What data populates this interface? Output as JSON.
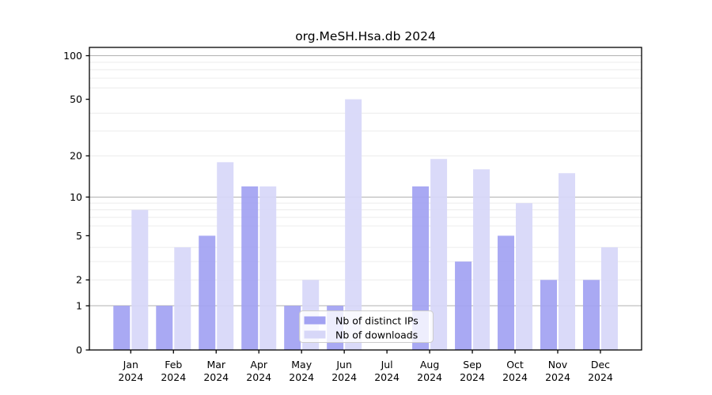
{
  "chart_data": {
    "type": "bar",
    "title": "org.MeSH.Hsa.db 2024",
    "categories": [
      "Jan 2024",
      "Feb 2024",
      "Mar 2024",
      "Apr 2024",
      "May 2024",
      "Jun 2024",
      "Jul 2024",
      "Aug 2024",
      "Sep 2024",
      "Oct 2024",
      "Nov 2024",
      "Dec 2024"
    ],
    "x_tick_months": [
      "Jan",
      "Feb",
      "Mar",
      "Apr",
      "May",
      "Jun",
      "Jul",
      "Aug",
      "Sep",
      "Oct",
      "Nov",
      "Dec"
    ],
    "x_tick_year": "2024",
    "series": [
      {
        "name": "Nb of distinct IPs",
        "color": "#a2a2f2",
        "values": [
          1,
          1,
          5,
          12,
          1,
          1,
          0,
          12,
          3,
          5,
          2,
          2
        ]
      },
      {
        "name": "Nb of downloads",
        "color": "#d7d7f8",
        "values": [
          8,
          4,
          18,
          12,
          2,
          50,
          0,
          19,
          16,
          9,
          15,
          4
        ]
      }
    ],
    "xlabel": "",
    "ylabel": "",
    "y_scale": "log1p",
    "ylim": [
      0,
      114
    ],
    "y_tick_values": [
      0,
      1,
      2,
      5,
      10,
      20,
      50,
      100
    ],
    "major_gridlines": [
      1,
      10,
      100
    ],
    "minor_gridlines": [
      2,
      3,
      4,
      6,
      7,
      8,
      9,
      20,
      30,
      40,
      60,
      70,
      80,
      90
    ],
    "grid": true,
    "legend_position": "lower center",
    "colors": {
      "axis": "#000000",
      "major_grid": "#b0b0b0",
      "minor_grid": "#ececec",
      "legend_border": "#cccccc",
      "legend_bg": "#ffffff",
      "text": "#000000"
    }
  }
}
